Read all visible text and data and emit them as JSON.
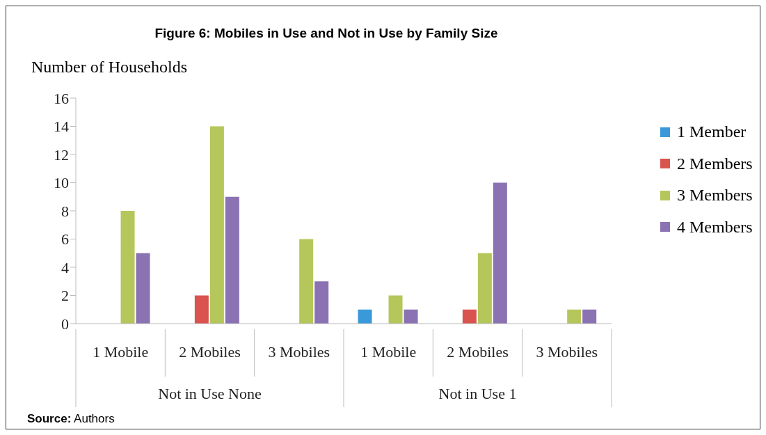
{
  "chart_data": {
    "type": "bar",
    "title": "Figure 6: Mobiles in Use and Not in Use by Family Size",
    "ylabel": "Number of Households",
    "categories": [
      "1 Mobile",
      "2 Mobiles",
      "3 Mobiles",
      "1 Mobile",
      "2 Mobiles",
      "3 Mobiles"
    ],
    "series": [
      {
        "name": "1 Member",
        "color": "#3a9ad9",
        "values": [
          0,
          0,
          0,
          1,
          0,
          0
        ]
      },
      {
        "name": "2 Members",
        "color": "#d9534f",
        "values": [
          0,
          2,
          0,
          0,
          1,
          0
        ]
      },
      {
        "name": "3 Members",
        "color": "#b5c65a",
        "values": [
          8,
          14,
          6,
          2,
          5,
          1
        ]
      },
      {
        "name": "4 Members",
        "color": "#8a72b3",
        "values": [
          5,
          9,
          3,
          1,
          10,
          1
        ]
      }
    ],
    "ylim": [
      0,
      16
    ],
    "yticks": [
      0,
      2,
      4,
      6,
      8,
      10,
      12,
      14,
      16
    ],
    "grid": false,
    "legend": "right",
    "annotations": [
      "Not in Use None",
      "Not in Use 1",
      "Source: Authors"
    ]
  }
}
